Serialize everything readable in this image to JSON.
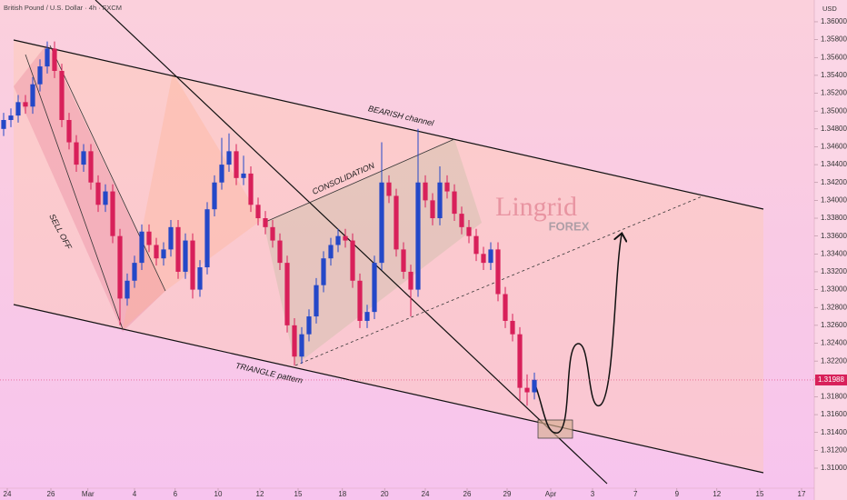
{
  "chart_data": {
    "type": "candlestick",
    "title": "British Pound / U.S. Dollar · 4h · FXCM",
    "y_axis_label": "USD",
    "annotations": {
      "channel": "BEARISH channel",
      "consolidation": "CONSOLIDATION",
      "sell_off": "SELL OFF",
      "triangle": "TRIANGLE pattern"
    },
    "logo": {
      "name": "Lingrid",
      "sub": "FOREX"
    },
    "up_color": "#2448c8",
    "down_color": "#d8205a",
    "last_price": 1.31988,
    "ylim": [
      1.30776,
      1.36244
    ],
    "yticks": [
      {
        "value": 1.31,
        "label": "1.31000"
      },
      {
        "value": 1.312,
        "label": "1.31200"
      },
      {
        "value": 1.314,
        "label": "1.31400"
      },
      {
        "value": 1.316,
        "label": "1.31600"
      },
      {
        "value": 1.318,
        "label": "1.31800"
      },
      {
        "value": 1.32,
        "label": "1.32000"
      },
      {
        "value": 1.322,
        "label": "1.32200"
      },
      {
        "value": 1.324,
        "label": "1.32400"
      },
      {
        "value": 1.326,
        "label": "1.32600"
      },
      {
        "value": 1.328,
        "label": "1.32800"
      },
      {
        "value": 1.33,
        "label": "1.33000"
      },
      {
        "value": 1.332,
        "label": "1.33200"
      },
      {
        "value": 1.334,
        "label": "1.33400"
      },
      {
        "value": 1.336,
        "label": "1.33600"
      },
      {
        "value": 1.338,
        "label": "1.33800"
      },
      {
        "value": 1.34,
        "label": "1.34000"
      },
      {
        "value": 1.342,
        "label": "1.34200"
      },
      {
        "value": 1.344,
        "label": "1.34400"
      },
      {
        "value": 1.346,
        "label": "1.34600"
      },
      {
        "value": 1.348,
        "label": "1.34800"
      },
      {
        "value": 1.35,
        "label": "1.35000"
      },
      {
        "value": 1.352,
        "label": "1.35200"
      },
      {
        "value": 1.354,
        "label": "1.35400"
      },
      {
        "value": 1.356,
        "label": "1.35600"
      },
      {
        "value": 1.358,
        "label": "1.35800"
      },
      {
        "value": 1.36,
        "label": "1.36000"
      }
    ],
    "xlim": [
      0,
      112
    ],
    "xticks": [
      {
        "value": 1,
        "label": "24"
      },
      {
        "value": 7,
        "label": "26"
      },
      {
        "value": 12.1,
        "label": "Mar"
      },
      {
        "value": 18.5,
        "label": "4"
      },
      {
        "value": 24.1,
        "label": "6"
      },
      {
        "value": 30,
        "label": "10"
      },
      {
        "value": 35.75,
        "label": "12"
      },
      {
        "value": 41,
        "label": "15"
      },
      {
        "value": 47.1,
        "label": "18"
      },
      {
        "value": 52.9,
        "label": "20"
      },
      {
        "value": 58.5,
        "label": "24"
      },
      {
        "value": 64.25,
        "label": "26"
      },
      {
        "value": 69.75,
        "label": "29"
      },
      {
        "value": 75.75,
        "label": "Apr"
      },
      {
        "value": 81.5,
        "label": "3"
      },
      {
        "value": 87.4,
        "label": "7"
      },
      {
        "value": 93.1,
        "label": "9"
      },
      {
        "value": 98.6,
        "label": "12"
      },
      {
        "value": 104.5,
        "label": "15"
      },
      {
        "value": 110.25,
        "label": "17"
      }
    ],
    "open": [
      1.348,
      1.349,
      1.3495,
      1.351,
      1.3505,
      1.353,
      1.355,
      1.357,
      1.3545,
      1.349,
      1.3465,
      1.344,
      1.3455,
      1.342,
      1.3395,
      1.341,
      1.336,
      1.329,
      1.331,
      1.333,
      1.3365,
      1.335,
      1.3335,
      1.3345,
      1.337,
      1.332,
      1.3355,
      1.33,
      1.3325,
      1.339,
      1.342,
      1.344,
      1.3455,
      1.3425,
      1.343,
      1.3395,
      1.338,
      1.337,
      1.3355,
      1.333,
      1.326,
      1.3225,
      1.325,
      1.327,
      1.3305,
      1.3335,
      1.335,
      1.336,
      1.3355,
      1.331,
      1.3265,
      1.3275,
      1.333,
      1.342,
      1.3405,
      1.3345,
      1.332,
      1.33,
      1.342,
      1.34,
      1.338,
      1.342,
      1.341,
      1.3385,
      1.337,
      1.336,
      1.334,
      1.333,
      1.3345,
      1.3295,
      1.3265,
      1.325,
      1.319,
      1.3185
    ],
    "high": [
      1.3498,
      1.3503,
      1.3518,
      1.3518,
      1.3538,
      1.3558,
      1.3578,
      1.3578,
      1.3553,
      1.3498,
      1.3473,
      1.3463,
      1.3463,
      1.3428,
      1.3418,
      1.3418,
      1.3368,
      1.3318,
      1.3338,
      1.3373,
      1.3373,
      1.3358,
      1.3353,
      1.3378,
      1.3378,
      1.3363,
      1.3363,
      1.3333,
      1.3398,
      1.3428,
      1.347,
      1.3475,
      1.3463,
      1.345,
      1.3438,
      1.3403,
      1.3388,
      1.3378,
      1.3363,
      1.3338,
      1.3268,
      1.3258,
      1.3278,
      1.3313,
      1.3343,
      1.3358,
      1.3368,
      1.3368,
      1.3363,
      1.3318,
      1.3283,
      1.3338,
      1.3465,
      1.3428,
      1.3413,
      1.3353,
      1.3328,
      1.348,
      1.3428,
      1.3408,
      1.3438,
      1.3428,
      1.3418,
      1.3393,
      1.3378,
      1.3368,
      1.3348,
      1.3353,
      1.3353,
      1.3303,
      1.3273,
      1.3258,
      1.3205,
      1.3207
    ],
    "low": [
      1.3472,
      1.3482,
      1.3487,
      1.3497,
      1.3497,
      1.3522,
      1.3542,
      1.3537,
      1.3482,
      1.3457,
      1.3432,
      1.3432,
      1.3412,
      1.3387,
      1.3387,
      1.3352,
      1.326,
      1.3282,
      1.3302,
      1.3322,
      1.3342,
      1.3327,
      1.3327,
      1.3337,
      1.3312,
      1.3312,
      1.329,
      1.3292,
      1.3317,
      1.3382,
      1.3412,
      1.3432,
      1.3417,
      1.3417,
      1.3387,
      1.3372,
      1.3362,
      1.3347,
      1.3322,
      1.3252,
      1.3215,
      1.3217,
      1.3242,
      1.3262,
      1.3297,
      1.3327,
      1.3342,
      1.3347,
      1.3302,
      1.3257,
      1.3257,
      1.3267,
      1.3322,
      1.3397,
      1.3337,
      1.3312,
      1.327,
      1.3292,
      1.3392,
      1.3372,
      1.3372,
      1.3402,
      1.3377,
      1.3362,
      1.3352,
      1.3332,
      1.3322,
      1.3322,
      1.3287,
      1.3257,
      1.3242,
      1.3175,
      1.317,
      1.3177
    ],
    "close": [
      1.349,
      1.3495,
      1.351,
      1.3505,
      1.353,
      1.355,
      1.357,
      1.3545,
      1.349,
      1.3465,
      1.344,
      1.3455,
      1.342,
      1.3395,
      1.341,
      1.336,
      1.329,
      1.331,
      1.333,
      1.3365,
      1.335,
      1.3335,
      1.3345,
      1.337,
      1.332,
      1.3355,
      1.33,
      1.3325,
      1.339,
      1.342,
      1.344,
      1.3455,
      1.3425,
      1.343,
      1.3395,
      1.338,
      1.337,
      1.3355,
      1.333,
      1.326,
      1.3225,
      1.325,
      1.327,
      1.3305,
      1.3335,
      1.335,
      1.336,
      1.3355,
      1.331,
      1.3265,
      1.3275,
      1.333,
      1.342,
      1.3405,
      1.3345,
      1.332,
      1.33,
      1.342,
      1.34,
      1.338,
      1.342,
      1.341,
      1.3385,
      1.337,
      1.336,
      1.334,
      1.333,
      1.3345,
      1.3295,
      1.3265,
      1.325,
      1.319,
      1.3185,
      1.3199
    ]
  }
}
